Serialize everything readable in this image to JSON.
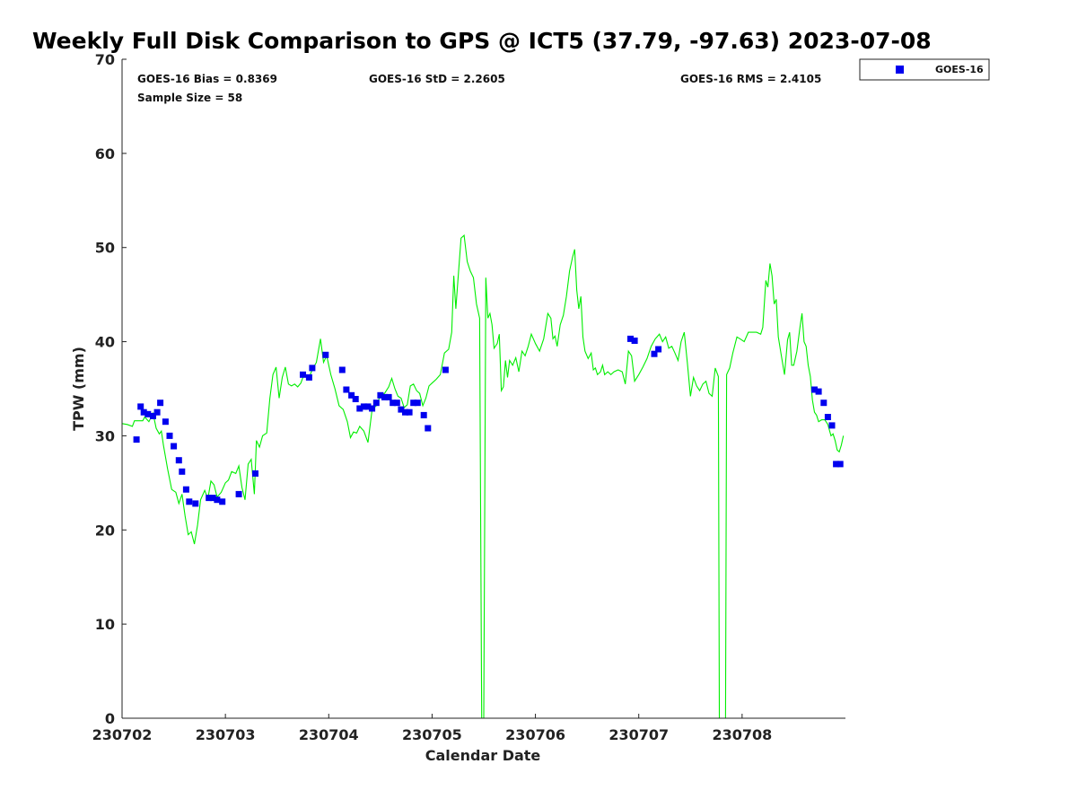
{
  "chart_data": {
    "type": "line",
    "title": "Weekly Full Disk Comparison to GPS @ ICT5 (37.79, -97.63) 2023-07-08",
    "xlabel": "Calendar Date",
    "ylabel": "TPW (mm)",
    "xlim": [
      0,
      7
    ],
    "ylim": [
      0,
      70
    ],
    "xticks": [
      {
        "x": 0,
        "label": "230702"
      },
      {
        "x": 1,
        "label": "230703"
      },
      {
        "x": 2,
        "label": "230704"
      },
      {
        "x": 3,
        "label": "230705"
      },
      {
        "x": 4,
        "label": "230706"
      },
      {
        "x": 5,
        "label": "230707"
      },
      {
        "x": 6,
        "label": "230708"
      }
    ],
    "yticks": [
      0,
      10,
      20,
      30,
      40,
      50,
      60,
      70
    ],
    "annotations": {
      "bias": "GOES-16 Bias = 0.8369",
      "std": "GOES-16 StD = 2.2605",
      "rms": "GOES-16 RMS = 2.4105",
      "sample": "Sample Size = 58"
    },
    "legend": {
      "position": "top-right",
      "entries": [
        "GOES-16"
      ]
    },
    "colors": {
      "gps_line": "#00ee00",
      "goes16_marker": "#0000ee"
    },
    "series": [
      {
        "name": "GPS",
        "kind": "line",
        "points": [
          [
            0,
            31.3
          ],
          [
            0.05,
            31.2
          ],
          [
            0.1,
            31.0
          ],
          [
            0.12,
            31.6
          ],
          [
            0.2,
            31.6
          ],
          [
            0.22,
            32.0
          ],
          [
            0.26,
            31.5
          ],
          [
            0.3,
            32.4
          ],
          [
            0.33,
            30.8
          ],
          [
            0.36,
            30.2
          ],
          [
            0.38,
            30.5
          ],
          [
            0.4,
            29.0
          ],
          [
            0.44,
            26.5
          ],
          [
            0.48,
            24.3
          ],
          [
            0.52,
            24.0
          ],
          [
            0.55,
            22.8
          ],
          [
            0.58,
            23.8
          ],
          [
            0.61,
            21.5
          ],
          [
            0.64,
            19.5
          ],
          [
            0.67,
            19.8
          ],
          [
            0.7,
            18.5
          ],
          [
            0.73,
            20.5
          ],
          [
            0.76,
            23.2
          ],
          [
            0.8,
            24.2
          ],
          [
            0.83,
            23.3
          ],
          [
            0.86,
            25.2
          ],
          [
            0.89,
            24.8
          ],
          [
            0.92,
            23.5
          ],
          [
            0.96,
            24.0
          ],
          [
            1.0,
            25.0
          ],
          [
            1.03,
            25.3
          ],
          [
            1.06,
            26.2
          ],
          [
            1.1,
            26.0
          ],
          [
            1.13,
            26.8
          ],
          [
            1.16,
            24.5
          ],
          [
            1.19,
            23.2
          ],
          [
            1.22,
            27.0
          ],
          [
            1.25,
            27.5
          ],
          [
            1.28,
            23.8
          ],
          [
            1.3,
            29.5
          ],
          [
            1.33,
            28.8
          ],
          [
            1.36,
            30.0
          ],
          [
            1.4,
            30.3
          ],
          [
            1.43,
            34.0
          ],
          [
            1.46,
            36.5
          ],
          [
            1.49,
            37.3
          ],
          [
            1.52,
            34.0
          ],
          [
            1.55,
            36.2
          ],
          [
            1.58,
            37.3
          ],
          [
            1.61,
            35.5
          ],
          [
            1.64,
            35.3
          ],
          [
            1.67,
            35.5
          ],
          [
            1.7,
            35.2
          ],
          [
            1.73,
            35.6
          ],
          [
            1.76,
            36.5
          ],
          [
            1.8,
            36.0
          ],
          [
            1.84,
            37.0
          ],
          [
            1.88,
            37.8
          ],
          [
            1.92,
            40.3
          ],
          [
            1.95,
            37.8
          ],
          [
            1.98,
            38.5
          ],
          [
            2.02,
            36.5
          ],
          [
            2.06,
            35.0
          ],
          [
            2.1,
            33.2
          ],
          [
            2.14,
            32.8
          ],
          [
            2.18,
            31.5
          ],
          [
            2.21,
            29.8
          ],
          [
            2.24,
            30.4
          ],
          [
            2.27,
            30.3
          ],
          [
            2.3,
            31.0
          ],
          [
            2.34,
            30.5
          ],
          [
            2.38,
            29.3
          ],
          [
            2.42,
            32.8
          ],
          [
            2.46,
            33.2
          ],
          [
            2.5,
            34.3
          ],
          [
            2.54,
            34.5
          ],
          [
            2.58,
            35.2
          ],
          [
            2.61,
            36.1
          ],
          [
            2.64,
            35.0
          ],
          [
            2.67,
            34.2
          ],
          [
            2.7,
            34.0
          ],
          [
            2.73,
            33.0
          ],
          [
            2.76,
            33.3
          ],
          [
            2.79,
            35.3
          ],
          [
            2.82,
            35.5
          ],
          [
            2.85,
            34.8
          ],
          [
            2.88,
            34.5
          ],
          [
            2.91,
            33.2
          ],
          [
            2.94,
            34.0
          ],
          [
            2.97,
            35.3
          ],
          [
            3.0,
            35.6
          ],
          [
            3.04,
            36.0
          ],
          [
            3.08,
            36.5
          ],
          [
            3.12,
            38.8
          ],
          [
            3.16,
            39.2
          ],
          [
            3.19,
            41.0
          ],
          [
            3.21,
            47.0
          ],
          [
            3.23,
            43.5
          ],
          [
            3.25,
            46.5
          ],
          [
            3.28,
            51.0
          ],
          [
            3.31,
            51.3
          ],
          [
            3.34,
            48.5
          ],
          [
            3.37,
            47.5
          ],
          [
            3.4,
            46.8
          ],
          [
            3.43,
            44.0
          ],
          [
            3.46,
            42.5
          ],
          [
            3.48,
            0
          ],
          [
            3.5,
            0
          ],
          [
            3.52,
            46.8
          ],
          [
            3.54,
            42.5
          ],
          [
            3.56,
            43.0
          ],
          [
            3.58,
            41.8
          ],
          [
            3.6,
            39.3
          ],
          [
            3.63,
            39.8
          ],
          [
            3.65,
            40.8
          ],
          [
            3.67,
            34.8
          ],
          [
            3.69,
            35.2
          ],
          [
            3.71,
            38.0
          ],
          [
            3.73,
            36.2
          ],
          [
            3.75,
            38.0
          ],
          [
            3.78,
            37.5
          ],
          [
            3.81,
            38.3
          ],
          [
            3.84,
            36.8
          ],
          [
            3.87,
            39.0
          ],
          [
            3.9,
            38.5
          ],
          [
            3.93,
            39.5
          ],
          [
            3.96,
            40.8
          ],
          [
            4.0,
            39.8
          ],
          [
            4.04,
            39.0
          ],
          [
            4.08,
            40.3
          ],
          [
            4.12,
            43.0
          ],
          [
            4.15,
            42.5
          ],
          [
            4.17,
            40.3
          ],
          [
            4.19,
            40.6
          ],
          [
            4.21,
            39.5
          ],
          [
            4.24,
            41.8
          ],
          [
            4.27,
            42.8
          ],
          [
            4.3,
            44.8
          ],
          [
            4.33,
            47.5
          ],
          [
            4.36,
            49.0
          ],
          [
            4.38,
            49.8
          ],
          [
            4.4,
            45.5
          ],
          [
            4.42,
            43.5
          ],
          [
            4.44,
            44.8
          ],
          [
            4.46,
            40.5
          ],
          [
            4.48,
            39.0
          ],
          [
            4.51,
            38.2
          ],
          [
            4.54,
            38.8
          ],
          [
            4.56,
            37.0
          ],
          [
            4.58,
            37.2
          ],
          [
            4.6,
            36.5
          ],
          [
            4.63,
            36.8
          ],
          [
            4.65,
            37.5
          ],
          [
            4.67,
            36.5
          ],
          [
            4.7,
            36.8
          ],
          [
            4.73,
            36.5
          ],
          [
            4.76,
            36.8
          ],
          [
            4.8,
            37.0
          ],
          [
            4.84,
            36.8
          ],
          [
            4.87,
            35.5
          ],
          [
            4.9,
            39.0
          ],
          [
            4.93,
            38.5
          ],
          [
            4.96,
            35.8
          ],
          [
            5.0,
            36.5
          ],
          [
            5.04,
            37.3
          ],
          [
            5.08,
            38.2
          ],
          [
            5.12,
            39.5
          ],
          [
            5.16,
            40.3
          ],
          [
            5.2,
            40.8
          ],
          [
            5.23,
            40.0
          ],
          [
            5.26,
            40.5
          ],
          [
            5.29,
            39.3
          ],
          [
            5.32,
            39.5
          ],
          [
            5.35,
            38.8
          ],
          [
            5.38,
            38.0
          ],
          [
            5.41,
            40.0
          ],
          [
            5.44,
            41.0
          ],
          [
            5.47,
            37.8
          ],
          [
            5.5,
            34.2
          ],
          [
            5.53,
            36.2
          ],
          [
            5.56,
            35.3
          ],
          [
            5.59,
            34.8
          ],
          [
            5.62,
            35.5
          ],
          [
            5.65,
            35.8
          ],
          [
            5.68,
            34.5
          ],
          [
            5.71,
            34.2
          ],
          [
            5.74,
            37.2
          ],
          [
            5.77,
            36.3
          ],
          [
            5.78,
            0
          ],
          [
            5.84,
            0
          ],
          [
            5.85,
            36.5
          ],
          [
            5.88,
            37.2
          ],
          [
            5.91,
            38.8
          ],
          [
            5.95,
            40.5
          ],
          [
            5.98,
            40.3
          ],
          [
            6.02,
            40.0
          ],
          [
            6.06,
            41.0
          ],
          [
            6.1,
            41.0
          ],
          [
            6.14,
            41.0
          ],
          [
            6.18,
            40.8
          ],
          [
            6.2,
            41.5
          ],
          [
            6.23,
            46.5
          ],
          [
            6.25,
            45.8
          ],
          [
            6.27,
            48.3
          ],
          [
            6.29,
            47.0
          ],
          [
            6.31,
            44.0
          ],
          [
            6.33,
            44.5
          ],
          [
            6.35,
            40.5
          ],
          [
            6.38,
            38.5
          ],
          [
            6.41,
            36.5
          ],
          [
            6.44,
            40.2
          ],
          [
            6.46,
            41.0
          ],
          [
            6.48,
            37.5
          ],
          [
            6.5,
            37.5
          ],
          [
            6.53,
            39.0
          ],
          [
            6.56,
            41.5
          ],
          [
            6.58,
            43.0
          ],
          [
            6.6,
            40.0
          ],
          [
            6.62,
            39.5
          ],
          [
            6.64,
            37.5
          ],
          [
            6.66,
            36.3
          ],
          [
            6.68,
            33.8
          ],
          [
            6.7,
            32.5
          ],
          [
            6.72,
            32.2
          ],
          [
            6.74,
            31.5
          ],
          [
            6.77,
            31.7
          ],
          [
            6.8,
            31.7
          ],
          [
            6.83,
            31.2
          ],
          [
            6.86,
            30.0
          ],
          [
            6.88,
            30.2
          ],
          [
            6.9,
            29.5
          ],
          [
            6.92,
            28.5
          ],
          [
            6.94,
            28.3
          ],
          [
            6.96,
            29.0
          ],
          [
            6.98,
            30.0
          ]
        ]
      },
      {
        "name": "GOES-16",
        "kind": "scatter",
        "points": [
          [
            0.14,
            29.6
          ],
          [
            0.18,
            33.1
          ],
          [
            0.21,
            32.5
          ],
          [
            0.25,
            32.3
          ],
          [
            0.3,
            32.1
          ],
          [
            0.34,
            32.5
          ],
          [
            0.37,
            33.5
          ],
          [
            0.42,
            31.5
          ],
          [
            0.46,
            30.0
          ],
          [
            0.5,
            28.9
          ],
          [
            0.55,
            27.4
          ],
          [
            0.58,
            26.2
          ],
          [
            0.62,
            24.3
          ],
          [
            0.65,
            23.0
          ],
          [
            0.71,
            22.8
          ],
          [
            0.84,
            23.4
          ],
          [
            0.88,
            23.4
          ],
          [
            0.92,
            23.2
          ],
          [
            0.97,
            23.0
          ],
          [
            1.13,
            23.8
          ],
          [
            1.29,
            26.0
          ],
          [
            1.75,
            36.5
          ],
          [
            1.81,
            36.2
          ],
          [
            1.84,
            37.2
          ],
          [
            1.97,
            38.6
          ],
          [
            2.13,
            37.0
          ],
          [
            2.17,
            34.9
          ],
          [
            2.22,
            34.3
          ],
          [
            2.26,
            33.9
          ],
          [
            2.3,
            32.9
          ],
          [
            2.34,
            33.1
          ],
          [
            2.38,
            33.1
          ],
          [
            2.42,
            32.9
          ],
          [
            2.46,
            33.5
          ],
          [
            2.5,
            34.3
          ],
          [
            2.54,
            34.1
          ],
          [
            2.58,
            34.1
          ],
          [
            2.62,
            33.5
          ],
          [
            2.66,
            33.5
          ],
          [
            2.7,
            32.8
          ],
          [
            2.74,
            32.5
          ],
          [
            2.78,
            32.5
          ],
          [
            2.82,
            33.5
          ],
          [
            2.86,
            33.5
          ],
          [
            2.92,
            32.2
          ],
          [
            2.96,
            30.8
          ],
          [
            3.13,
            37.0
          ],
          [
            4.92,
            40.3
          ],
          [
            4.96,
            40.1
          ],
          [
            5.15,
            38.7
          ],
          [
            5.19,
            39.2
          ],
          [
            6.7,
            34.9
          ],
          [
            6.74,
            34.7
          ],
          [
            6.79,
            33.5
          ],
          [
            6.83,
            32.0
          ],
          [
            6.87,
            31.1
          ],
          [
            6.91,
            27.0
          ],
          [
            6.95,
            27.0
          ]
        ]
      }
    ]
  }
}
